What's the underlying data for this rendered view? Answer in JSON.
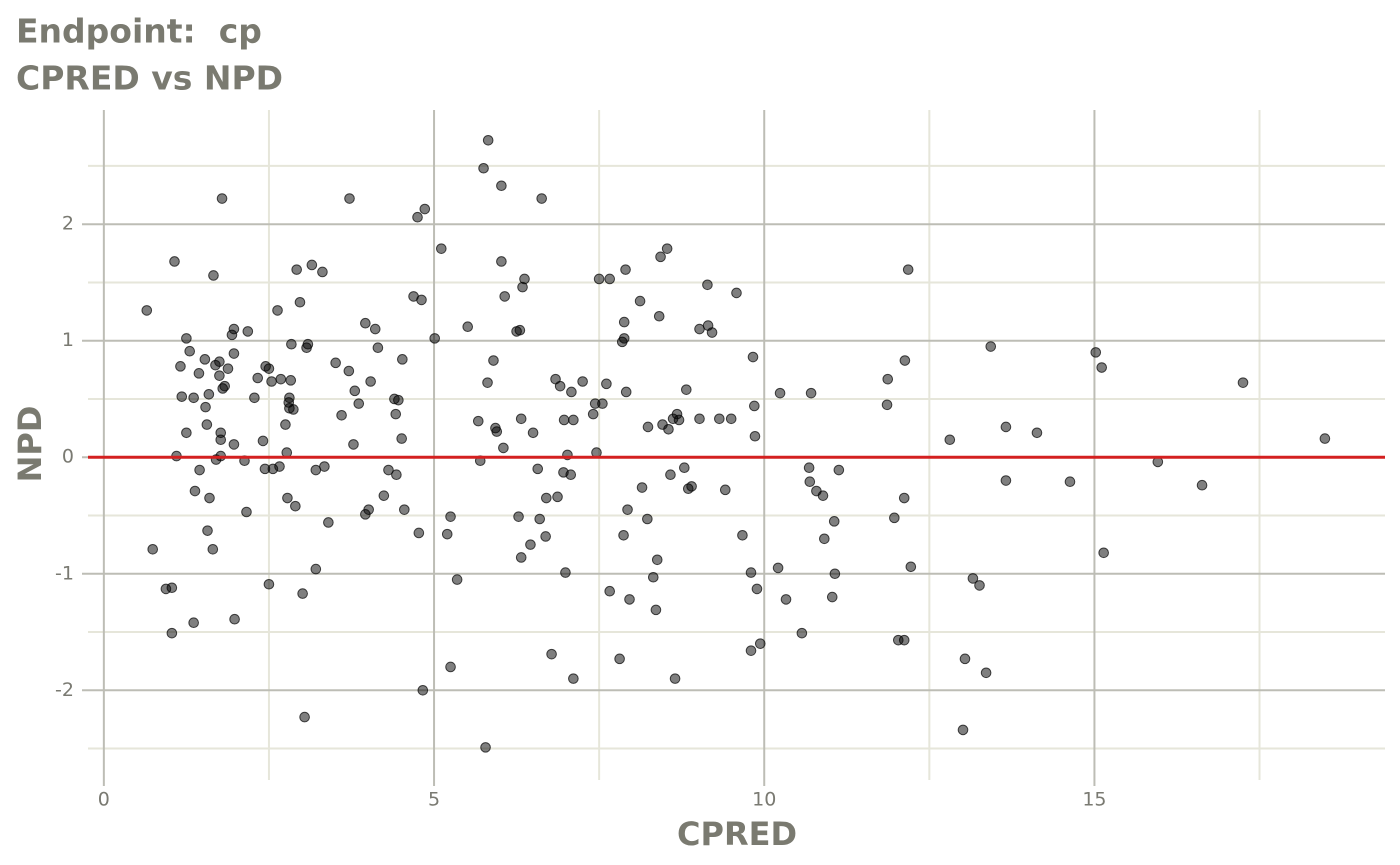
{
  "chart_data": {
    "type": "scatter",
    "title": "Endpoint:  cp",
    "subtitle": "CPRED vs NPD",
    "x_label": "CPRED",
    "y_label": "NPD",
    "x": [
      0.65,
      0.74,
      0.94,
      1.03,
      1.03,
      1.07,
      1.1,
      1.16,
      1.18,
      1.25,
      1.25,
      1.3,
      1.36,
      1.38,
      1.36,
      1.44,
      1.45,
      1.53,
      1.54,
      1.56,
      1.57,
      1.59,
      1.6,
      1.65,
      1.66,
      1.69,
      1.7,
      1.75,
      1.75,
      1.77,
      1.77,
      1.77,
      1.79,
      1.8,
      1.83,
      1.88,
      1.94,
      1.97,
      1.97,
      1.97,
      1.98,
      2.13,
      2.16,
      2.18,
      2.28,
      2.33,
      2.41,
      2.44,
      2.45,
      2.5,
      2.5,
      2.54,
      2.56,
      2.63,
      2.66,
      2.68,
      2.75,
      2.77,
      2.78,
      2.8,
      2.81,
      2.81,
      2.83,
      2.84,
      2.87,
      2.9,
      2.92,
      2.97,
      3.01,
      3.04,
      3.07,
      3.09,
      3.15,
      3.21,
      3.21,
      3.31,
      3.34,
      3.4,
      3.51,
      3.6,
      3.71,
      3.72,
      3.78,
      3.8,
      3.86,
      3.96,
      3.96,
      4.01,
      4.04,
      4.11,
      4.15,
      4.24,
      4.31,
      4.4,
      4.42,
      4.43,
      4.46,
      4.51,
      4.52,
      4.55,
      4.69,
      4.75,
      4.77,
      4.81,
      4.83,
      4.86,
      5.01,
      5.11,
      5.2,
      5.25,
      5.25,
      5.35,
      5.51,
      5.67,
      5.7,
      5.75,
      5.78,
      5.81,
      5.82,
      5.9,
      5.93,
      5.95,
      6.02,
      6.02,
      6.07,
      6.05,
      6.25,
      6.28,
      6.3,
      6.32,
      6.32,
      6.34,
      6.37,
      6.46,
      6.5,
      6.57,
      6.6,
      6.63,
      6.69,
      6.7,
      6.78,
      6.84,
      6.87,
      6.91,
      6.96,
      6.97,
      6.99,
      7.02,
      7.07,
      7.08,
      7.11,
      7.11,
      7.25,
      7.41,
      7.44,
      7.46,
      7.5,
      7.55,
      7.61,
      7.66,
      7.66,
      7.81,
      7.85,
      7.87,
      7.88,
      7.88,
      7.9,
      7.91,
      7.93,
      7.96,
      8.12,
      8.15,
      8.23,
      8.24,
      8.32,
      8.36,
      8.38,
      8.41,
      8.43,
      8.46,
      8.53,
      8.55,
      8.58,
      8.62,
      8.65,
      8.68,
      8.71,
      8.79,
      8.82,
      8.85,
      8.9,
      9.02,
      9.02,
      9.14,
      9.15,
      9.21,
      9.32,
      9.41,
      9.5,
      9.58,
      9.67,
      9.8,
      9.8,
      9.83,
      9.85,
      9.86,
      9.89,
      9.94,
      10.21,
      10.24,
      10.33,
      10.57,
      10.68,
      10.69,
      10.71,
      10.79,
      10.89,
      10.91,
      11.03,
      11.06,
      11.07,
      11.13,
      11.86,
      11.87,
      11.97,
      12.03,
      12.12,
      12.12,
      12.13,
      12.18,
      12.22,
      12.81,
      13.01,
      13.04,
      13.16,
      13.26,
      13.36,
      13.43,
      13.66,
      13.66,
      14.13,
      14.63,
      15.02,
      15.11,
      15.14,
      15.96,
      16.63,
      17.25,
      18.49
    ],
    "values": [
      1.26,
      -0.79,
      -1.13,
      -1.12,
      -1.51,
      1.68,
      0.01,
      0.78,
      0.52,
      1.02,
      0.21,
      0.91,
      0.51,
      -0.29,
      -1.42,
      0.72,
      -0.11,
      0.84,
      0.43,
      0.28,
      -0.63,
      0.54,
      -0.35,
      -0.79,
      1.56,
      0.79,
      -0.02,
      0.82,
      0.7,
      0.21,
      0.15,
      0.01,
      2.22,
      0.59,
      0.61,
      0.76,
      1.05,
      1.1,
      0.89,
      0.11,
      -1.39,
      -0.03,
      -0.47,
      1.08,
      0.51,
      0.68,
      0.14,
      -0.1,
      0.78,
      0.76,
      -1.09,
      0.65,
      -0.1,
      1.26,
      -0.08,
      0.67,
      0.28,
      0.04,
      -0.35,
      0.47,
      0.51,
      0.42,
      0.66,
      0.97,
      0.41,
      -0.42,
      1.61,
      1.33,
      -1.17,
      -2.23,
      0.94,
      0.97,
      1.65,
      -0.11,
      -0.96,
      1.59,
      -0.08,
      -0.56,
      0.81,
      0.36,
      0.74,
      2.22,
      0.11,
      0.57,
      0.46,
      1.15,
      -0.49,
      -0.45,
      0.65,
      1.1,
      0.94,
      -0.33,
      -0.11,
      0.5,
      0.37,
      -0.15,
      0.49,
      0.16,
      0.84,
      -0.45,
      1.38,
      2.06,
      -0.65,
      1.35,
      -2.0,
      2.13,
      1.02,
      1.79,
      -0.66,
      -0.51,
      -1.8,
      -1.05,
      1.12,
      0.31,
      -0.03,
      2.48,
      -2.49,
      0.64,
      2.72,
      0.83,
      0.25,
      0.22,
      2.33,
      1.68,
      1.38,
      0.08,
      1.08,
      -0.51,
      1.09,
      -0.86,
      0.33,
      1.46,
      1.53,
      -0.75,
      0.21,
      -0.1,
      -0.53,
      2.22,
      -0.68,
      -0.35,
      -1.69,
      0.67,
      -0.34,
      0.61,
      -0.13,
      0.32,
      -0.99,
      0.02,
      -0.15,
      0.56,
      -1.9,
      0.32,
      0.65,
      0.37,
      0.46,
      0.04,
      1.53,
      0.46,
      0.63,
      1.53,
      -1.15,
      -1.73,
      0.99,
      -0.67,
      1.16,
      1.02,
      1.61,
      0.56,
      -0.45,
      -1.22,
      1.34,
      -0.26,
      -0.53,
      0.26,
      -1.03,
      -1.31,
      -0.88,
      1.21,
      1.72,
      0.28,
      1.79,
      0.24,
      -0.15,
      0.33,
      -1.9,
      0.37,
      0.32,
      -0.09,
      0.58,
      -0.27,
      -0.25,
      1.1,
      0.33,
      1.48,
      1.13,
      1.07,
      0.33,
      -0.28,
      0.33,
      1.41,
      -0.67,
      -1.66,
      -0.99,
      0.86,
      0.44,
      0.18,
      -1.13,
      -1.6,
      -0.95,
      0.55,
      -1.22,
      -1.51,
      -0.09,
      -0.21,
      0.55,
      -0.29,
      -0.33,
      -0.7,
      -1.2,
      -0.55,
      -1.0,
      -0.11,
      0.45,
      0.67,
      -0.52,
      -1.57,
      -1.57,
      -0.35,
      0.83,
      1.61,
      -0.94,
      0.15,
      -2.34,
      -1.73,
      -1.04,
      -1.1,
      -1.85,
      0.95,
      0.26,
      -0.2,
      0.21,
      -0.21,
      0.9,
      0.77,
      -0.82,
      -0.04,
      -0.24,
      0.64,
      0.16
    ],
    "color": "#000000",
    "xlim": [
      -0.24,
      19.4
    ],
    "ylim": [
      -2.77,
      2.98
    ],
    "xticks": [
      0,
      5,
      10,
      15
    ],
    "yticks": [
      -2,
      -1,
      0,
      1,
      2
    ],
    "grid": true,
    "hline": 0,
    "hline_color": "#d42020"
  }
}
